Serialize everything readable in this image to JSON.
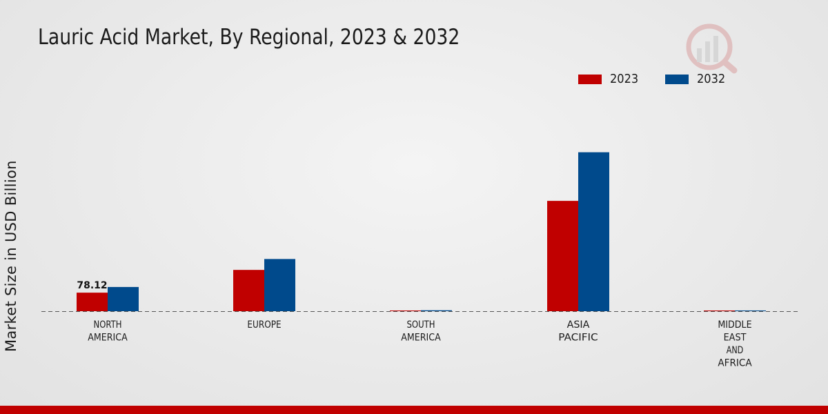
{
  "title": "Lauric Acid Market, By Regional, 2023 & 2032",
  "colors": {
    "s2023": "#c00000",
    "s2032": "#004a8c",
    "baseline": "#555555",
    "footer": "#c00000"
  },
  "chart_data": {
    "type": "bar",
    "title": "Lauric Acid Market, By Regional, 2023 & 2032",
    "xlabel": "",
    "ylabel": "Market Size in USD Billion",
    "categories": [
      [
        "NORTH",
        "AMERICA"
      ],
      [
        "EUROPE"
      ],
      [
        "SOUTH",
        "AMERICA"
      ],
      [
        "ASIA",
        "PACIFIC"
      ],
      [
        "MIDDLE",
        "EAST",
        "AND",
        "AFRICA"
      ]
    ],
    "series": [
      {
        "name": "2023",
        "values": [
          78.12,
          174.0,
          2.5,
          465.0,
          2.0
        ]
      },
      {
        "name": "2032",
        "values": [
          102.0,
          220.0,
          3.8,
          670.0,
          3.0
        ]
      }
    ],
    "data_labels": [
      {
        "series": 0,
        "index": 0,
        "text": "78.12"
      }
    ],
    "ylim": [
      0,
      1050
    ],
    "grid": false,
    "legend": "top-right"
  },
  "legend": {
    "items": [
      {
        "label": "2023"
      },
      {
        "label": "2032"
      }
    ]
  }
}
